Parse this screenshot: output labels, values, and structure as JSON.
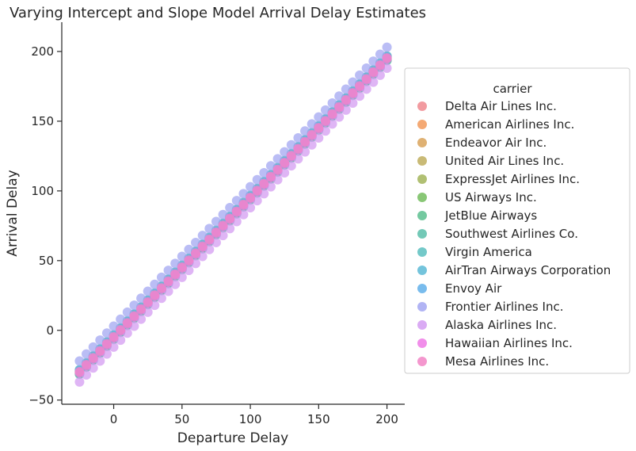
{
  "chart_data": {
    "type": "scatter",
    "title": "Varying Intercept and Slope Model Arrival Delay Estimates",
    "xlabel": "Departure Delay",
    "ylabel": "Arrival Delay",
    "xlim": [
      -38,
      213
    ],
    "ylim": [
      -53,
      221
    ],
    "xticks": [
      0,
      50,
      100,
      150,
      200
    ],
    "yticks": [
      -50,
      0,
      50,
      100,
      150,
      200
    ],
    "grid": false,
    "legend": {
      "title": "carrier",
      "placement": "center-right"
    },
    "x": {
      "start": -25,
      "end": 200,
      "step": 5
    },
    "series": [
      {
        "name": "Delta Air Lines Inc.",
        "color": "#f08a8f",
        "intercept": -5.5,
        "slope": 1.0
      },
      {
        "name": "American Airlines Inc.",
        "color": "#f29a5c",
        "intercept": -6.2,
        "slope": 1.0
      },
      {
        "name": "Endeavor Air Inc.",
        "color": "#d9a35a",
        "intercept": -4.8,
        "slope": 1.0
      },
      {
        "name": "United Air Lines Inc.",
        "color": "#bfae5e",
        "intercept": -5.0,
        "slope": 1.0
      },
      {
        "name": "ExpressJet Airlines Inc.",
        "color": "#a3b55a",
        "intercept": -3.6,
        "slope": 1.0
      },
      {
        "name": "US Airways Inc.",
        "color": "#74bd5e",
        "intercept": -5.8,
        "slope": 1.0
      },
      {
        "name": "JetBlue Airways",
        "color": "#5cbf8f",
        "intercept": -4.2,
        "slope": 1.0
      },
      {
        "name": "Southwest Airlines Co.",
        "color": "#5bbfaa",
        "intercept": -4.5,
        "slope": 1.0
      },
      {
        "name": "Virgin America",
        "color": "#5cbfc0",
        "intercept": -6.5,
        "slope": 1.0
      },
      {
        "name": "AirTran Airways Corporation",
        "color": "#5cbad6",
        "intercept": -3.2,
        "slope": 1.0
      },
      {
        "name": "Envoy Air",
        "color": "#62b0ea",
        "intercept": -4.0,
        "slope": 1.0
      },
      {
        "name": "Frontier Airlines Inc.",
        "color": "#a3a7f2",
        "intercept": 3.0,
        "slope": 1.0
      },
      {
        "name": "Alaska Airlines Inc.",
        "color": "#d49cf2",
        "intercept": -12.0,
        "slope": 1.0
      },
      {
        "name": "Hawaiian Airlines Inc.",
        "color": "#ee7ae6",
        "intercept": -5.3,
        "slope": 1.0
      },
      {
        "name": "Mesa Airlines Inc.",
        "color": "#f285c6",
        "intercept": -4.6,
        "slope": 1.0
      }
    ]
  }
}
